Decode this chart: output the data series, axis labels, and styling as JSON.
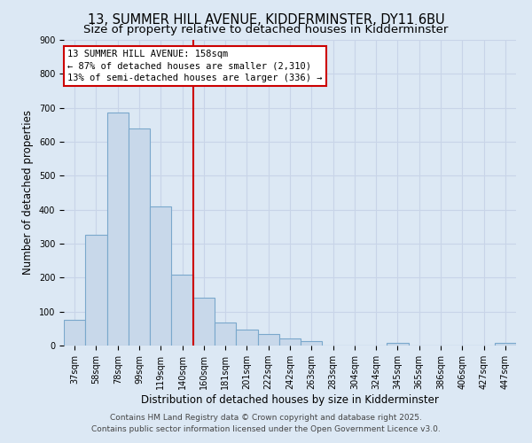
{
  "title1": "13, SUMMER HILL AVENUE, KIDDERMINSTER, DY11 6BU",
  "title2": "Size of property relative to detached houses in Kidderminster",
  "xlabel": "Distribution of detached houses by size in Kidderminster",
  "ylabel": "Number of detached properties",
  "bin_labels": [
    "37sqm",
    "58sqm",
    "78sqm",
    "99sqm",
    "119sqm",
    "140sqm",
    "160sqm",
    "181sqm",
    "201sqm",
    "222sqm",
    "242sqm",
    "263sqm",
    "283sqm",
    "304sqm",
    "324sqm",
    "345sqm",
    "365sqm",
    "386sqm",
    "406sqm",
    "427sqm",
    "447sqm"
  ],
  "bar_values": [
    75,
    325,
    685,
    640,
    410,
    210,
    140,
    68,
    47,
    35,
    20,
    12,
    0,
    0,
    0,
    8,
    0,
    0,
    0,
    0,
    8
  ],
  "bar_color": "#c8d8ea",
  "bar_edge_color": "#7aa8cc",
  "vline_x": 6.0,
  "vline_color": "#cc0000",
  "annotation_line1": "13 SUMMER HILL AVENUE: 158sqm",
  "annotation_line2": "← 87% of detached houses are smaller (2,310)",
  "annotation_line3": "13% of semi-detached houses are larger (336) →",
  "annotation_box_color": "#ffffff",
  "annotation_box_edge": "#cc0000",
  "ylim": [
    0,
    900
  ],
  "yticks": [
    0,
    100,
    200,
    300,
    400,
    500,
    600,
    700,
    800,
    900
  ],
  "grid_color": "#c8d4e8",
  "bg_color": "#dce8f4",
  "footer_line1": "Contains HM Land Registry data © Crown copyright and database right 2025.",
  "footer_line2": "Contains public sector information licensed under the Open Government Licence v3.0.",
  "title_fontsize": 10.5,
  "subtitle_fontsize": 9.5,
  "axis_label_fontsize": 8.5,
  "tick_fontsize": 7,
  "annotation_fontsize": 7.5,
  "footer_fontsize": 6.5
}
